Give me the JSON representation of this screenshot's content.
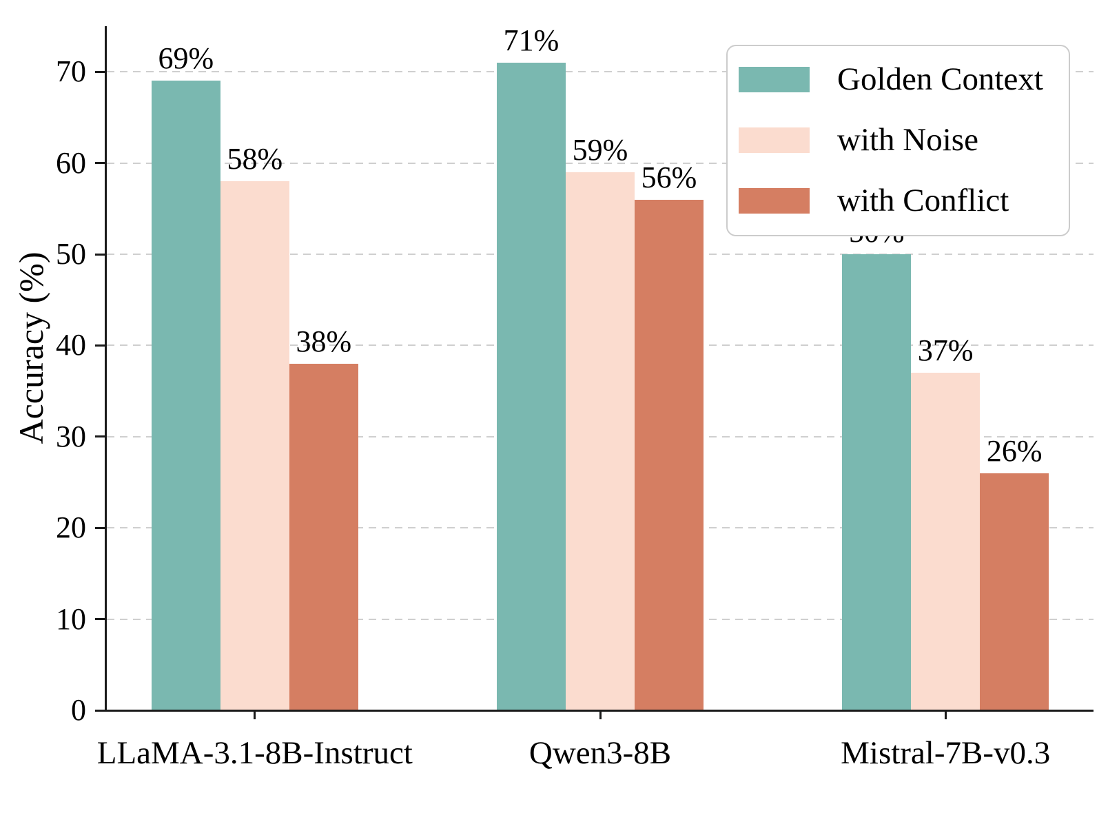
{
  "chart_data": {
    "type": "bar",
    "title": "",
    "categories": [
      "LLaMA-3.1-8B-Instruct",
      "Qwen3-8B",
      "Mistral-7B-v0.3"
    ],
    "series": [
      {
        "name": "Golden Context",
        "color": "#7ab8b0",
        "values": [
          69,
          71,
          50
        ]
      },
      {
        "name": "with Noise",
        "color": "#fbdccf",
        "values": [
          58,
          59,
          37
        ]
      },
      {
        "name": "with Conflict",
        "color": "#d57e62",
        "values": [
          38,
          56,
          26
        ]
      }
    ],
    "xlabel": "",
    "ylabel": "Accuracy (%)",
    "ylim": [
      0,
      75
    ],
    "yticks": [
      0,
      10,
      20,
      30,
      40,
      50,
      60,
      70
    ],
    "value_label_suffix": "%",
    "grid": "horizontal-dashed",
    "legend_position": "upper-right"
  },
  "style": {
    "axis_color": "#1a1a1a",
    "grid_color": "#cfcfcf",
    "text_color": "#000000",
    "background": "#ffffff",
    "legend_border": "#cccccc"
  }
}
